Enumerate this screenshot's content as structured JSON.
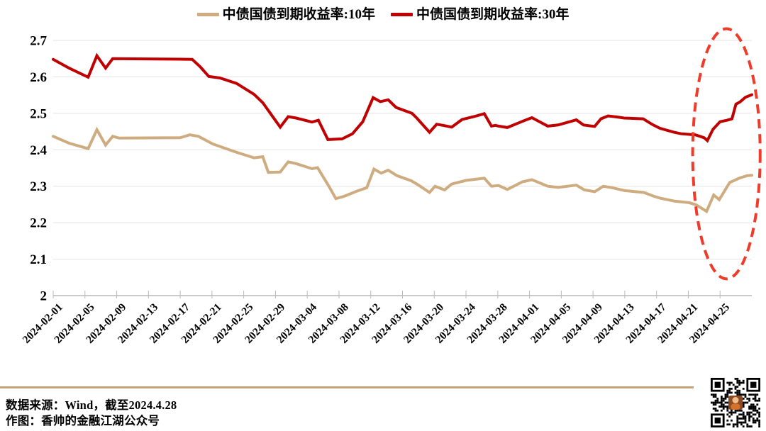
{
  "legend": {
    "items": [
      {
        "id": "cgb-10y",
        "label": "中债国债到期收益率:10年",
        "color": "#CEAC7F"
      },
      {
        "id": "cgb-30y",
        "label": "中债国债到期收益率:30年",
        "color": "#C00000"
      }
    ]
  },
  "footer": {
    "source_line": "数据来源：Wind，截至2024.4.28",
    "author_line": "作图：香帅的金融江湖公众号",
    "rule_color": "#C4A379"
  },
  "icons": {
    "qr_code": "wechat-qr-code-with-avatar"
  },
  "chart_data": {
    "type": "line",
    "title": "",
    "xlabel": "",
    "ylabel": "",
    "grid": "horizontal",
    "legend_position": "top-center",
    "x_axis": {
      "labels": [
        "2024-02-01",
        "2024-02-05",
        "2024-02-09",
        "2024-02-13",
        "2024-02-17",
        "2024-02-21",
        "2024-02-25",
        "2024-02-29",
        "2024-03-04",
        "2024-03-08",
        "2024-03-12",
        "2024-03-16",
        "2024-03-20",
        "2024-03-24",
        "2024-03-28",
        "2024-04-01",
        "2024-04-05",
        "2024-04-09",
        "2024-04-13",
        "2024-04-17",
        "2024-04-21",
        "2024-04-25"
      ],
      "label_days": [
        0,
        4,
        8,
        12,
        16,
        20,
        24,
        28,
        32,
        36,
        40,
        44,
        48,
        52,
        56,
        60,
        64,
        68,
        72,
        76,
        80,
        84
      ],
      "day_max": 88
    },
    "y_axis": {
      "min": 2.0,
      "max": 2.7,
      "ticks": [
        {
          "label": "2",
          "value": 2.0
        },
        {
          "label": "2.1",
          "value": 2.1
        },
        {
          "label": "2.2",
          "value": 2.2
        },
        {
          "label": "2.3",
          "value": 2.3
        },
        {
          "label": "2.4",
          "value": 2.4
        },
        {
          "label": "2.5",
          "value": 2.5
        },
        {
          "label": "2.6",
          "value": 2.6
        },
        {
          "label": "2.7",
          "value": 2.7
        }
      ]
    },
    "series": [
      {
        "id": "cgb-10y",
        "name": "中债国债到期收益率:10年",
        "color": "#CEAC7F",
        "stroke_width": 4,
        "points": [
          [
            0,
            2.437
          ],
          [
            2,
            2.418
          ],
          [
            4.4,
            2.403
          ],
          [
            5.5,
            2.455
          ],
          [
            6.6,
            2.413
          ],
          [
            7.5,
            2.437
          ],
          [
            8.3,
            2.432
          ],
          [
            16,
            2.433
          ],
          [
            17.2,
            2.441
          ],
          [
            18.3,
            2.437
          ],
          [
            20.1,
            2.416
          ],
          [
            23.1,
            2.393
          ],
          [
            25.3,
            2.378
          ],
          [
            26.4,
            2.381
          ],
          [
            27.1,
            2.338
          ],
          [
            28.6,
            2.339
          ],
          [
            29.6,
            2.367
          ],
          [
            30.6,
            2.362
          ],
          [
            32.6,
            2.348
          ],
          [
            33.3,
            2.351
          ],
          [
            34.7,
            2.301
          ],
          [
            35.6,
            2.266
          ],
          [
            36.6,
            2.272
          ],
          [
            38.2,
            2.286
          ],
          [
            39.5,
            2.296
          ],
          [
            40.4,
            2.347
          ],
          [
            41.3,
            2.336
          ],
          [
            42.2,
            2.344
          ],
          [
            43.3,
            2.329
          ],
          [
            45.1,
            2.315
          ],
          [
            45.8,
            2.306
          ],
          [
            47.4,
            2.283
          ],
          [
            48.1,
            2.3
          ],
          [
            49.3,
            2.29
          ],
          [
            50.2,
            2.306
          ],
          [
            52,
            2.316
          ],
          [
            54.3,
            2.322
          ],
          [
            55.2,
            2.3
          ],
          [
            56.1,
            2.302
          ],
          [
            57.2,
            2.291
          ],
          [
            59.1,
            2.312
          ],
          [
            60.3,
            2.318
          ],
          [
            62.3,
            2.3
          ],
          [
            63.6,
            2.297
          ],
          [
            65.9,
            2.303
          ],
          [
            66.9,
            2.29
          ],
          [
            68.2,
            2.285
          ],
          [
            69.3,
            2.3
          ],
          [
            70.4,
            2.296
          ],
          [
            72,
            2.288
          ],
          [
            74.4,
            2.283
          ],
          [
            75.6,
            2.273
          ],
          [
            76.5,
            2.267
          ],
          [
            78.3,
            2.259
          ],
          [
            80.1,
            2.255
          ],
          [
            81,
            2.249
          ],
          [
            82.3,
            2.231
          ],
          [
            83.2,
            2.276
          ],
          [
            83.9,
            2.263
          ],
          [
            85.2,
            2.31
          ],
          [
            86.4,
            2.322
          ],
          [
            87.4,
            2.329
          ],
          [
            88,
            2.33
          ]
        ]
      },
      {
        "id": "cgb-30y",
        "name": "中债国债到期收益率:30年",
        "color": "#C00000",
        "stroke_width": 4,
        "points": [
          [
            0,
            2.648
          ],
          [
            2,
            2.624
          ],
          [
            4.4,
            2.599
          ],
          [
            5.5,
            2.658
          ],
          [
            6.6,
            2.624
          ],
          [
            7.5,
            2.65
          ],
          [
            17.5,
            2.648
          ],
          [
            18.5,
            2.628
          ],
          [
            19.6,
            2.601
          ],
          [
            21,
            2.597
          ],
          [
            23.1,
            2.582
          ],
          [
            25.3,
            2.552
          ],
          [
            26.4,
            2.529
          ],
          [
            28.6,
            2.462
          ],
          [
            29.6,
            2.491
          ],
          [
            30.6,
            2.487
          ],
          [
            32.6,
            2.476
          ],
          [
            33.4,
            2.481
          ],
          [
            34.6,
            2.428
          ],
          [
            36.4,
            2.43
          ],
          [
            37.7,
            2.444
          ],
          [
            39,
            2.477
          ],
          [
            40.3,
            2.543
          ],
          [
            41.2,
            2.532
          ],
          [
            42.2,
            2.537
          ],
          [
            43.2,
            2.516
          ],
          [
            45.2,
            2.5
          ],
          [
            45.8,
            2.487
          ],
          [
            47.4,
            2.448
          ],
          [
            48.3,
            2.47
          ],
          [
            49.1,
            2.467
          ],
          [
            50.2,
            2.462
          ],
          [
            51.5,
            2.483
          ],
          [
            53,
            2.491
          ],
          [
            54.3,
            2.499
          ],
          [
            55.2,
            2.465
          ],
          [
            55.7,
            2.467
          ],
          [
            56.1,
            2.465
          ],
          [
            57.2,
            2.461
          ],
          [
            59.1,
            2.478
          ],
          [
            60.3,
            2.488
          ],
          [
            62.3,
            2.465
          ],
          [
            63.6,
            2.468
          ],
          [
            65.9,
            2.482
          ],
          [
            66.8,
            2.468
          ],
          [
            68.2,
            2.464
          ],
          [
            69,
            2.485
          ],
          [
            69.9,
            2.493
          ],
          [
            71,
            2.49
          ],
          [
            71.9,
            2.487
          ],
          [
            74.3,
            2.485
          ],
          [
            75.5,
            2.469
          ],
          [
            76.4,
            2.459
          ],
          [
            78.2,
            2.448
          ],
          [
            79.1,
            2.444
          ],
          [
            80.9,
            2.441
          ],
          [
            82,
            2.433
          ],
          [
            82.4,
            2.425
          ],
          [
            83.1,
            2.456
          ],
          [
            84,
            2.477
          ],
          [
            84.9,
            2.481
          ],
          [
            85.5,
            2.485
          ],
          [
            86,
            2.525
          ],
          [
            86.5,
            2.531
          ],
          [
            87.2,
            2.544
          ],
          [
            88,
            2.551
          ]
        ]
      }
    ],
    "annotation": {
      "shape": "ellipse",
      "style": "dashed",
      "color": "#EE3B2A",
      "stroke_width": 4,
      "center_day": 84.8,
      "center_value": 2.389,
      "radius_days": 4.25,
      "radius_value": 0.343
    }
  }
}
